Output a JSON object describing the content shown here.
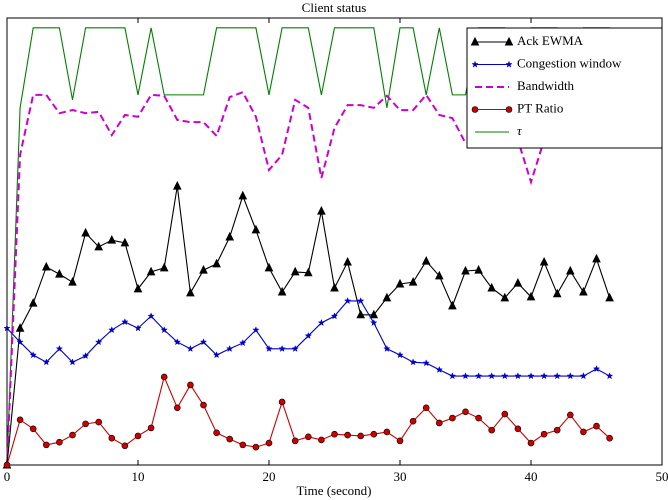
{
  "chart_data": {
    "type": "line",
    "title": "Client status",
    "xlabel": "Time (second)",
    "x": [
      0,
      1,
      2,
      3,
      4,
      5,
      6,
      7,
      8,
      9,
      10,
      11,
      12,
      13,
      14,
      15,
      16,
      17,
      18,
      19,
      20,
      21,
      22,
      23,
      24,
      25,
      26,
      27,
      28,
      29,
      30,
      31,
      32,
      33,
      34,
      35,
      36,
      37,
      38,
      39,
      40,
      41,
      42,
      43,
      44,
      45,
      46
    ],
    "xlim": [
      0,
      50
    ],
    "xticks": [
      0,
      10,
      20,
      30,
      40,
      50
    ],
    "ylim": [
      0,
      100
    ],
    "legend": "upper right",
    "series": [
      {
        "name": "Ack EWMA",
        "color": "#000000",
        "marker": "triangle",
        "dash": false,
        "values": [
          0,
          30.6,
          36.2,
          44.3,
          42.7,
          40.9,
          51.9,
          48.8,
          50.3,
          49.7,
          39.4,
          43.2,
          44.1,
          62.4,
          38.5,
          43.6,
          45.0,
          51.0,
          60.2,
          52.6,
          44.1,
          38.7,
          43.2,
          43.0,
          56.8,
          39.6,
          45.4,
          33.6,
          33.6,
          37.4,
          40.5,
          40.9,
          45.6,
          42.3,
          35.6,
          43.4,
          43.6,
          39.6,
          37.4,
          40.7,
          37.6,
          45.4,
          38.3,
          43.4,
          38.7,
          46.1,
          37.4
        ]
      },
      {
        "name": "Congestion window",
        "color": "#0000cc",
        "marker": "star",
        "dash": false,
        "values": [
          30.6,
          27.5,
          24.6,
          23.0,
          26.0,
          23.0,
          24.4,
          27.5,
          30.2,
          32.0,
          30.6,
          33.3,
          30.2,
          27.5,
          26.0,
          27.5,
          24.6,
          26.0,
          27.3,
          30.2,
          26.0,
          26.0,
          26.0,
          28.9,
          31.8,
          33.3,
          36.7,
          36.7,
          31.8,
          26.0,
          24.6,
          23.0,
          22.8,
          21.3,
          19.9,
          19.9,
          19.9,
          19.9,
          19.9,
          19.9,
          19.9,
          19.9,
          19.9,
          19.9,
          19.9,
          21.5,
          19.9
        ]
      },
      {
        "name": "Bandwidth",
        "color": "#cc00cc",
        "marker": "none",
        "dash": true,
        "values": [
          0,
          69.4,
          82.8,
          82.8,
          78.7,
          79.4,
          78.7,
          79.0,
          73.8,
          78.3,
          77.9,
          82.8,
          82.6,
          77.2,
          76.7,
          76.7,
          73.6,
          82.3,
          83.4,
          77.9,
          66.0,
          69.4,
          81.7,
          79.9,
          64.2,
          75.4,
          80.5,
          80.5,
          79.9,
          82.6,
          79.4,
          79.4,
          82.8,
          78.3,
          77.6,
          72.0,
          72.7,
          73.8,
          75.4,
          72.7,
          63.3,
          72.7,
          79.4,
          80.5,
          78.3,
          79.4,
          77.2
        ]
      },
      {
        "name": "PT Ratio",
        "color": "#cc0000",
        "marker": "circle",
        "dash": false,
        "values": [
          0,
          10.1,
          8.1,
          4.5,
          5.1,
          6.7,
          9.2,
          9.6,
          6.0,
          4.3,
          6.5,
          8.3,
          19.7,
          12.8,
          17.9,
          13.4,
          7.2,
          5.8,
          4.5,
          4.0,
          4.9,
          14.1,
          5.4,
          6.3,
          5.6,
          6.9,
          6.7,
          6.5,
          6.9,
          7.4,
          5.4,
          9.8,
          12.8,
          9.4,
          10.5,
          11.9,
          10.5,
          7.8,
          11.4,
          8.1,
          4.9,
          6.9,
          7.8,
          11.2,
          7.4,
          8.7,
          6.0
        ]
      },
      {
        "name": "τ",
        "color": "#008000",
        "marker": "none",
        "dash": false,
        "values": [
          0,
          79.9,
          97.8,
          97.8,
          97.8,
          81.7,
          97.8,
          97.8,
          97.8,
          97.8,
          82.8,
          97.8,
          82.8,
          82.8,
          82.8,
          82.8,
          97.8,
          97.8,
          97.8,
          97.8,
          82.8,
          97.8,
          97.8,
          97.8,
          82.8,
          97.8,
          97.8,
          97.8,
          97.8,
          79.9,
          97.8,
          97.8,
          82.8,
          97.8,
          82.8,
          82.8,
          97.8,
          97.8,
          97.8,
          82.8,
          97.8,
          97.8,
          97.8,
          82.8,
          97.8,
          97.8,
          97.8
        ]
      }
    ]
  }
}
